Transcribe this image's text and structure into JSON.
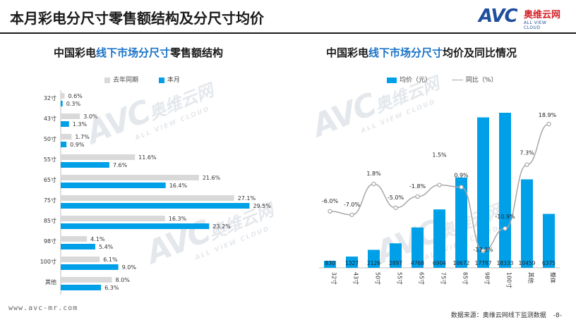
{
  "header": {
    "title": "本月彩电分尺寸零售额结构及分尺寸均价",
    "logo_mark": "AVC",
    "logo_cn": "奥维云网",
    "logo_en": "ALL VIEW CLOUD"
  },
  "watermark": {
    "mark": "AVC",
    "cn": "奥维云网",
    "en": "ALL VIEW CLOUD"
  },
  "chart_data": [
    {
      "type": "bar",
      "orientation": "horizontal",
      "title_parts": [
        "中国彩电",
        "线下市场分尺寸",
        "零售额结构"
      ],
      "categories": [
        "32寸",
        "43寸",
        "50寸",
        "55寸",
        "65寸",
        "75寸",
        "85寸",
        "98寸",
        "100寸",
        "其他"
      ],
      "series": [
        {
          "name": "去年同期",
          "color": "#d9d9d9",
          "values": [
            0.6,
            3.0,
            1.7,
            11.6,
            21.6,
            27.1,
            16.3,
            4.1,
            6.1,
            8.0
          ],
          "labels": [
            "0.6%",
            "3.0%",
            "1.7%",
            "11.6%",
            "21.6%",
            "27.1%",
            "16.3%",
            "4.1%",
            "6.1%",
            "8.0%"
          ]
        },
        {
          "name": "本月",
          "color": "#00a0e9",
          "values": [
            0.3,
            1.3,
            0.9,
            7.6,
            16.4,
            29.5,
            23.2,
            5.4,
            9.0,
            6.3
          ],
          "labels": [
            "0.3%",
            "1.3%",
            "0.9%",
            "7.6%",
            "16.4%",
            "29.5%",
            "23.2%",
            "5.4%",
            "9.0%",
            "6.3%"
          ]
        }
      ],
      "xlim": [
        0,
        30
      ],
      "legend": "top-left"
    },
    {
      "type": "bar+line",
      "title_parts": [
        "中国彩电",
        "线下市场分尺寸",
        "均价及同比情况"
      ],
      "categories": [
        "32寸",
        "43寸",
        "50寸",
        "55寸",
        "65寸",
        "75寸",
        "85寸",
        "98寸",
        "100寸",
        "其他",
        "整体"
      ],
      "bar_series": {
        "name": "均价（元）",
        "color": "#00a0e9",
        "values": [
          830,
          1327,
          2126,
          2897,
          4768,
          6904,
          10672,
          17787,
          18333,
          10459,
          6375
        ],
        "labels": [
          "830",
          "1327",
          "2126",
          "2897",
          "4768",
          "6904",
          "10672",
          "17787",
          "18333",
          "10459",
          "6375"
        ]
      },
      "line_series": {
        "name": "同比（%）",
        "color": "#a6a6a6",
        "values": [
          -6.0,
          -7.0,
          1.8,
          -5.0,
          -1.8,
          1.5,
          0.9,
          -17.3,
          -10.9,
          7.3,
          18.9
        ],
        "labels": [
          "-6.0%",
          "-7.0%",
          "1.8%",
          "-5.0%",
          "-1.8%",
          "1.5%",
          "0.9%",
          "-17.3%",
          "-10.9%",
          "7.3%",
          "18.9%"
        ]
      },
      "legend": "top"
    }
  ],
  "footer": {
    "url": "www.avc-mr.com",
    "source": "数据来源：奥维云网线下监测数据",
    "page": "-8-"
  }
}
